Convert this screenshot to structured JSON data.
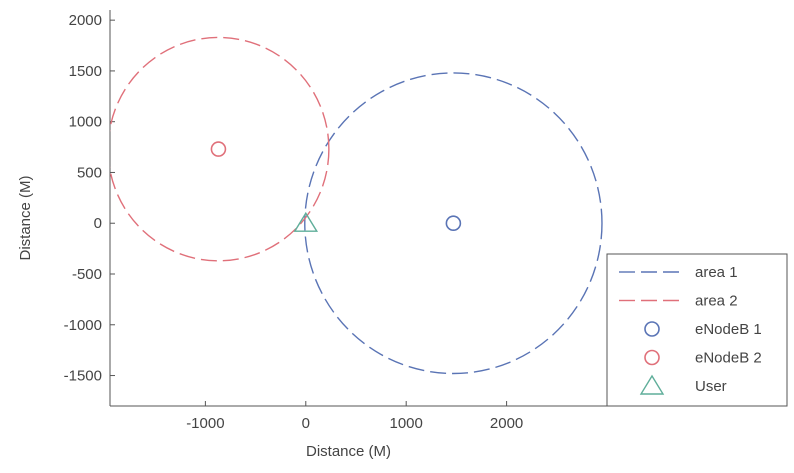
{
  "chart_data": {
    "type": "scatter",
    "title": "",
    "xlabel": "Distance (M)",
    "ylabel": "Distance (M)",
    "xlim": [
      -1950,
      3000
    ],
    "ylim": [
      -1800,
      2100
    ],
    "xticks": [
      -1000,
      0,
      1000,
      2000
    ],
    "xtick_labels": [
      "-1000",
      "0",
      "1000",
      "2000"
    ],
    "yticks": [
      2000,
      1500,
      1000,
      500,
      0,
      -500,
      -1000,
      -1500
    ],
    "ytick_labels": [
      "2000",
      "1500",
      "1000",
      "500",
      "0",
      "-500",
      "-1000",
      "-1500"
    ],
    "grid": false,
    "legend_position": "bottom-right",
    "series": [
      {
        "name": "area 1",
        "kind": "circle-boundary",
        "center": [
          1470,
          0
        ],
        "radius": 1480,
        "color": "#5a74b5",
        "style": "dashed"
      },
      {
        "name": "area 2",
        "kind": "circle-boundary",
        "center": [
          -870,
          730
        ],
        "radius": 1100,
        "color": "#e0707a",
        "style": "dashed"
      },
      {
        "name": "eNodeB 1",
        "kind": "marker",
        "marker": "circle",
        "points": [
          [
            1470,
            0
          ]
        ],
        "color": "#5a74b5"
      },
      {
        "name": "eNodeB 2",
        "kind": "marker",
        "marker": "circle",
        "points": [
          [
            -870,
            730
          ]
        ],
        "color": "#e0707a"
      },
      {
        "name": "User",
        "kind": "marker",
        "marker": "triangle",
        "points": [
          [
            0,
            0
          ]
        ],
        "color": "#5fae9a"
      }
    ]
  }
}
